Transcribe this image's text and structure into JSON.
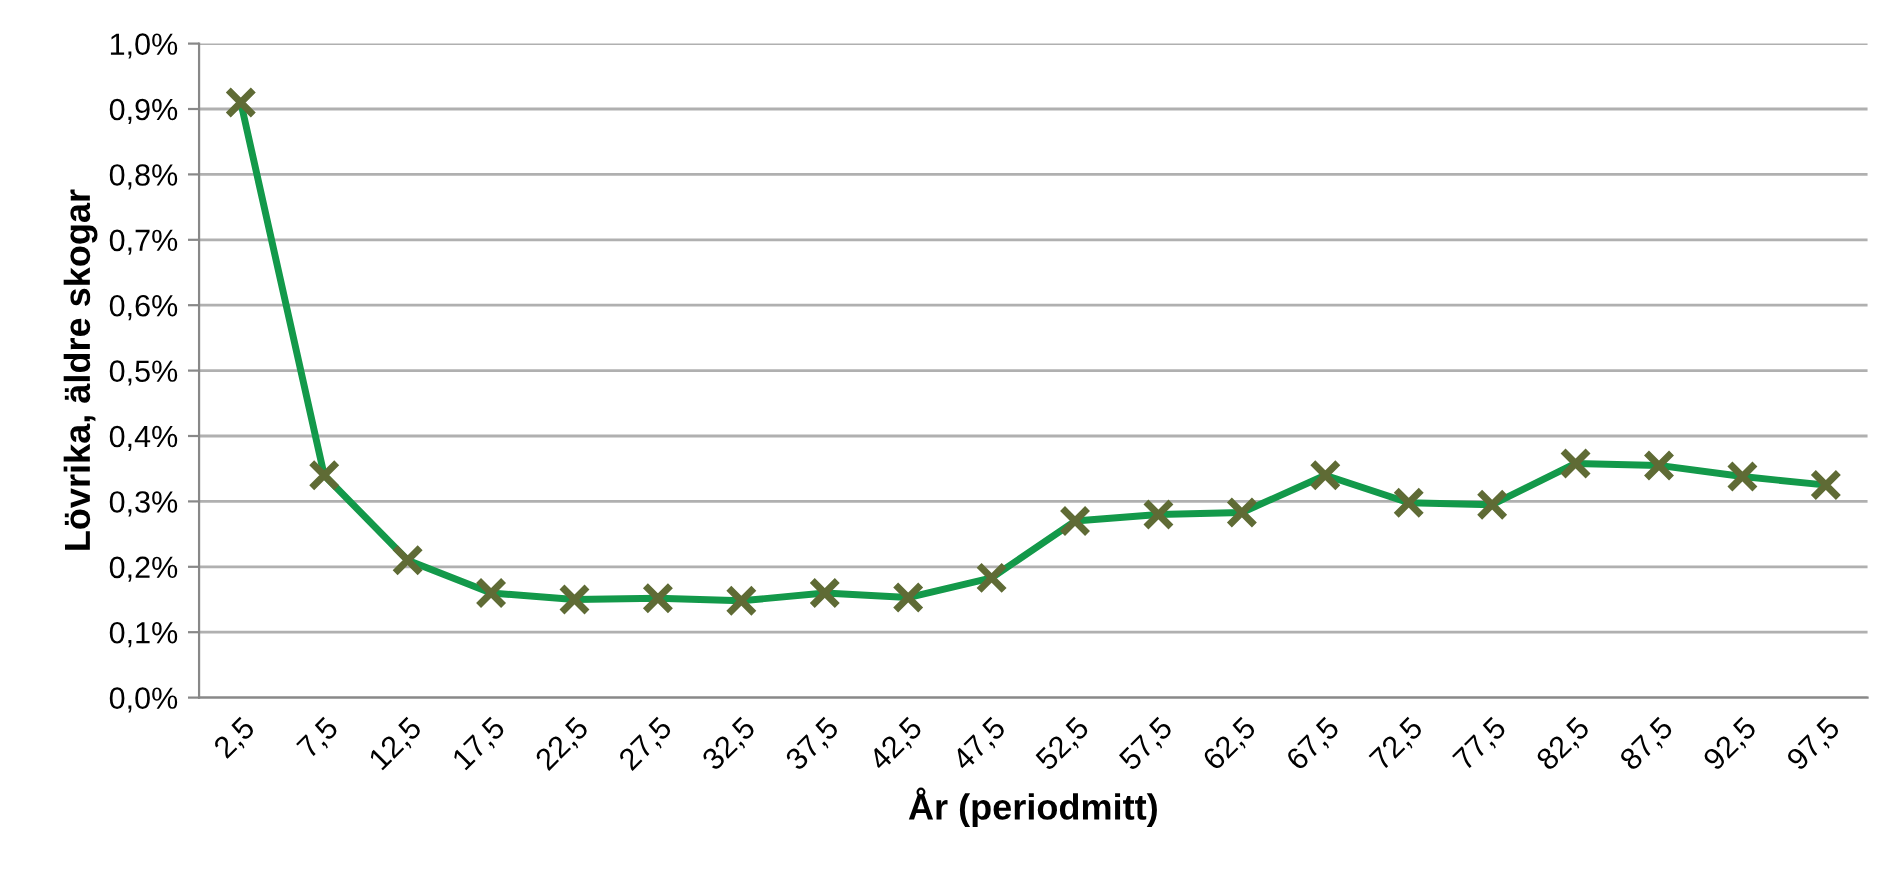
{
  "chart_data": {
    "type": "line",
    "xlabel": "År (periodmitt)",
    "ylabel": "Lövrika, äldre skogar",
    "categories": [
      "2,5",
      "7,5",
      "12,5",
      "17,5",
      "22,5",
      "27,5",
      "32,5",
      "37,5",
      "42,5",
      "47,5",
      "52,5",
      "57,5",
      "62,5",
      "67,5",
      "72,5",
      "77,5",
      "82,5",
      "87,5",
      "92,5",
      "97,5"
    ],
    "series": [
      {
        "color": "#13994a",
        "values": [
          0.91,
          0.34,
          0.21,
          0.16,
          0.15,
          0.152,
          0.148,
          0.16,
          0.153,
          0.183,
          0.27,
          0.28,
          0.283,
          0.34,
          0.298,
          0.295,
          0.358,
          0.355,
          0.338,
          0.325
        ]
      }
    ],
    "ylim": [
      0,
      1.0
    ],
    "yticks": [
      {
        "value": 0,
        "label": "0,0%"
      },
      {
        "value": 0.1,
        "label": "0,1%"
      },
      {
        "value": 0.2,
        "label": "0,2%"
      },
      {
        "value": 0.3,
        "label": "0,3%"
      },
      {
        "value": 0.4,
        "label": "0,4%"
      },
      {
        "value": 0.5,
        "label": "0,5%"
      },
      {
        "value": 0.6,
        "label": "0,6%"
      },
      {
        "value": 0.7,
        "label": "0,7%"
      },
      {
        "value": 0.8,
        "label": "0,8%"
      },
      {
        "value": 0.9,
        "label": "0,9%"
      },
      {
        "value": 1.0,
        "label": "1,0%"
      }
    ],
    "grid": "y",
    "marker": "cross",
    "line_style": "solid"
  }
}
